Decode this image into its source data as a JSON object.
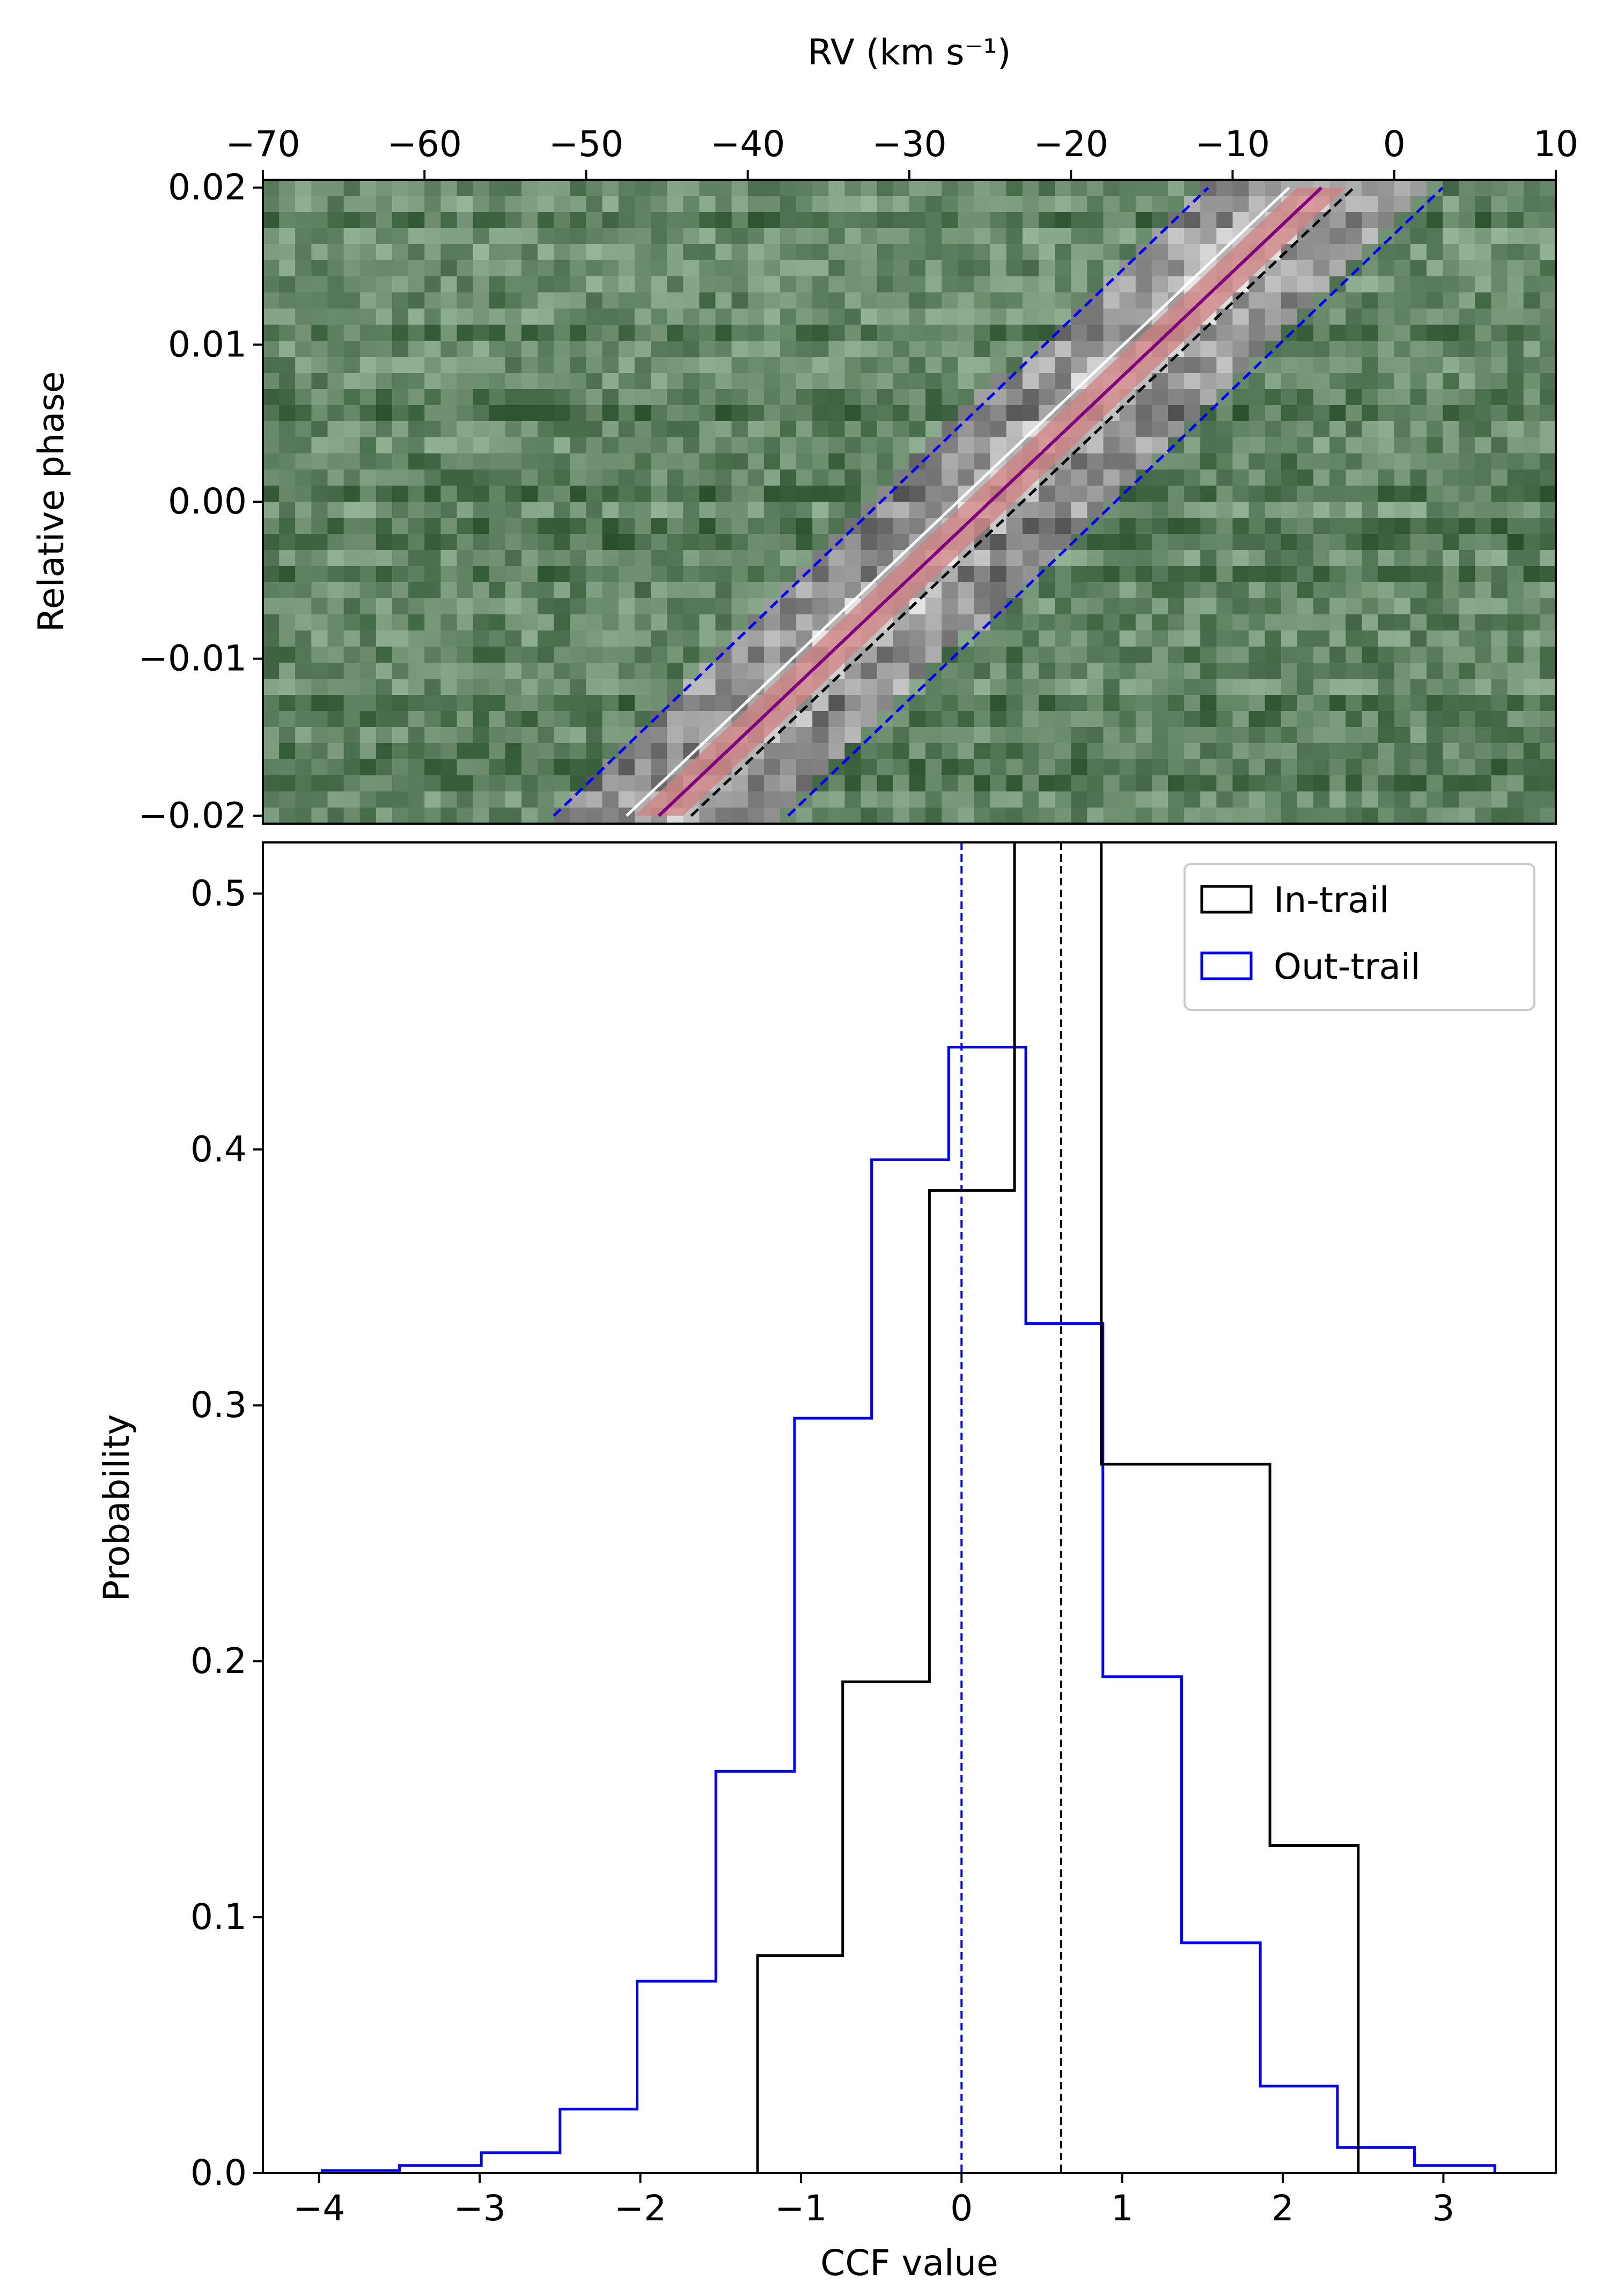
{
  "chart_data": [
    {
      "type": "heatmap",
      "xlabel": "RV (km s⁻¹)",
      "ylabel": "Relative phase",
      "xlim": [
        -70,
        10
      ],
      "ylim": [
        -0.0205,
        0.0205
      ],
      "x_ticks": [
        -70,
        -60,
        -50,
        -40,
        -30,
        -20,
        -10,
        0,
        10
      ],
      "x_tick_labels": [
        "−70",
        "−60",
        "−50",
        "−40",
        "−30",
        "−20",
        "−10",
        "0",
        "10"
      ],
      "y_ticks": [
        -0.02,
        -0.01,
        0.0,
        0.01,
        0.02
      ],
      "y_tick_labels": [
        "−0.02",
        "−0.01",
        "0.00",
        "0.01",
        "0.02"
      ],
      "colormap": "green-tinted grayscale",
      "background_color": "#5f8262",
      "trail": {
        "center_line_color": "#800080",
        "center_band_color": "#d08080",
        "center_line": {
          "rv_at_phase_min": -45.5,
          "rv_at_phase_max": -4.5
        },
        "inner_bounds": [
          {
            "rv_at_phase_min": -47.5,
            "rv_at_phase_max": -6.5,
            "color": "#ffffff"
          },
          {
            "rv_at_phase_min": -43.5,
            "rv_at_phase_max": -2.5,
            "color": "#000000"
          }
        ],
        "outer_bounds": [
          {
            "rv_at_phase_min": -52.0,
            "rv_at_phase_max": -11.5,
            "color": "#0000ff"
          },
          {
            "rv_at_phase_min": -37.5,
            "rv_at_phase_max": 3.0,
            "color": "#0000ff"
          }
        ]
      }
    },
    {
      "type": "histogram",
      "xlabel": "CCF value",
      "ylabel": "Probability",
      "xlim": [
        -4.35,
        3.7
      ],
      "ylim": [
        0,
        0.52
      ],
      "x_ticks": [
        -4,
        -3,
        -2,
        -1,
        0,
        1,
        2,
        3
      ],
      "x_tick_labels": [
        "−4",
        "−3",
        "−2",
        "−1",
        "0",
        "1",
        "2",
        "3"
      ],
      "y_ticks": [
        0.0,
        0.1,
        0.2,
        0.3,
        0.4,
        0.5
      ],
      "y_tick_labels": [
        "0.0",
        "0.1",
        "0.2",
        "0.3",
        "0.4",
        "0.5"
      ],
      "legend_position": "top-right",
      "series": [
        {
          "name": "In-trail",
          "color": "#000000",
          "bin_edges": [
            -1.27,
            -0.74,
            -0.2,
            0.33,
            0.87,
            1.92,
            2.47
          ],
          "values": [
            0.085,
            0.192,
            0.384,
            0.56,
            0.277,
            0.128
          ],
          "mean_line": 0.62
        },
        {
          "name": "Out-trail",
          "color": "#0000ff",
          "bin_edges": [
            -3.98,
            -3.5,
            -2.99,
            -2.5,
            -2.02,
            -1.53,
            -1.04,
            -0.56,
            -0.08,
            0.4,
            0.88,
            1.37,
            1.86,
            2.34,
            2.82,
            3.32
          ],
          "values": [
            0.001,
            0.003,
            0.008,
            0.025,
            0.075,
            0.157,
            0.295,
            0.396,
            0.44,
            0.332,
            0.194,
            0.09,
            0.034,
            0.01,
            0.003
          ],
          "mean_line": 0.0
        }
      ]
    }
  ]
}
